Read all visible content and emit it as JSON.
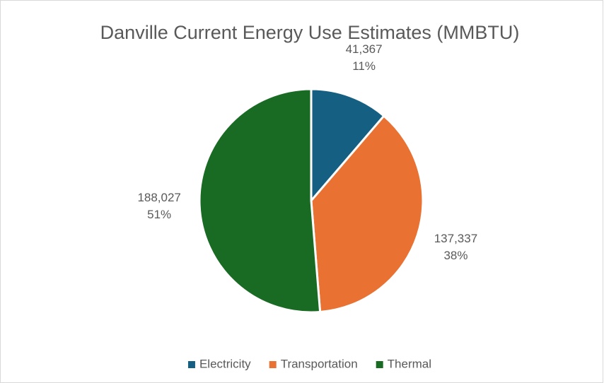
{
  "chart_data": {
    "type": "pie",
    "title": "Danville Current Energy Use Estimates (MMBTU)",
    "categories": [
      "Electricity",
      "Transportation",
      "Thermal"
    ],
    "values": [
      41367,
      137337,
      188027
    ],
    "value_labels": [
      "41,367",
      "137,337",
      "188,027"
    ],
    "percent_labels": [
      "11%",
      "38%",
      "51%"
    ],
    "colors": [
      "#156082",
      "#e97132",
      "#196b24"
    ],
    "legend": "bottom"
  }
}
